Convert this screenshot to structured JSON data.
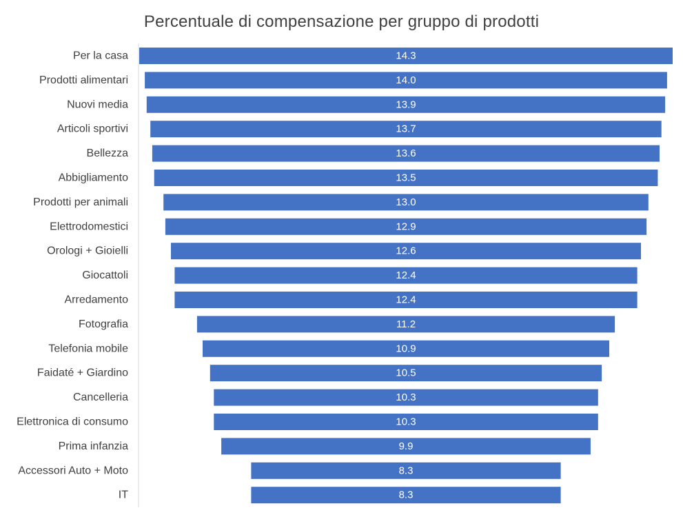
{
  "chart_data": {
    "type": "bar",
    "orientation": "horizontal",
    "layout": "funnel",
    "title": "Percentuale di compensazione per gruppo di prodotti",
    "xlabel": "",
    "ylabel": "",
    "categories": [
      "Per la casa",
      "Prodotti alimentari",
      "Nuovi media",
      "Articoli sportivi",
      "Bellezza",
      "Abbigliamento",
      "Prodotti per animali",
      "Elettrodomestici",
      "Orologi + Gioielli",
      "Giocattoli",
      "Arredamento",
      "Fotografia",
      "Telefonia mobile",
      "Faidaté + Giardino",
      "Cancelleria",
      "Elettronica di consumo",
      "Prima infanzia",
      "Accessori Auto + Moto",
      "IT"
    ],
    "values": [
      14.3,
      14.0,
      13.9,
      13.7,
      13.6,
      13.5,
      13.0,
      12.9,
      12.6,
      12.4,
      12.4,
      11.2,
      10.9,
      10.5,
      10.3,
      10.3,
      9.9,
      8.3,
      8.3
    ],
    "data_labels": [
      "14.3",
      "14.0",
      "13.9",
      "13.7",
      "13.6",
      "13.5",
      "13.0",
      "12.9",
      "12.6",
      "12.4",
      "12.4",
      "11.2",
      "10.9",
      "10.5",
      "10.3",
      "10.3",
      "9.9",
      "8.3",
      "8.3"
    ],
    "xlim": [
      0,
      14.3
    ],
    "grid": false,
    "legend": "none",
    "colors": {
      "bar": "#4472c4",
      "label": "#ffffff",
      "category_text": "#404040",
      "axis": "#d9d9d9"
    }
  }
}
